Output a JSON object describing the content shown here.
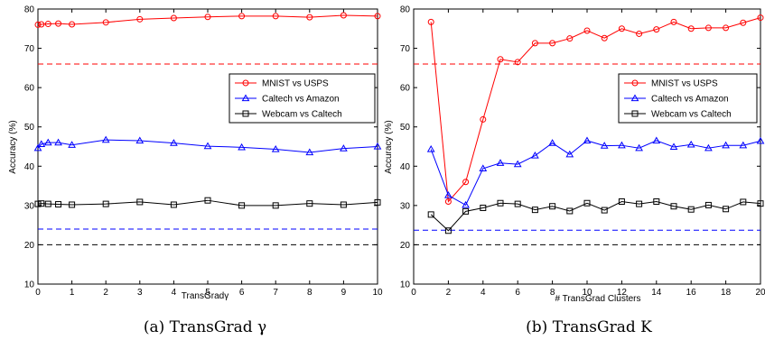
{
  "chart_data": [
    {
      "type": "line",
      "caption": "(a) TransGrad γ",
      "xlabel": "TransGradγ",
      "ylabel": "Accuracy (%)",
      "xlim": [
        0,
        10
      ],
      "ylim": [
        10,
        80
      ],
      "xticks": [
        0,
        1,
        2,
        3,
        4,
        5,
        6,
        7,
        8,
        9,
        10
      ],
      "yticks": [
        10,
        20,
        30,
        40,
        50,
        60,
        70,
        80
      ],
      "legend_position": "right",
      "grid": false,
      "x": [
        0,
        0.1,
        0.3,
        0.6,
        1,
        2,
        3,
        4,
        5,
        6,
        7,
        8,
        9,
        10
      ],
      "series": [
        {
          "name": "MNIST vs USPS",
          "color": "#ff0000",
          "marker": "circle",
          "values": [
            76.0,
            76.1,
            76.2,
            76.3,
            76.1,
            76.6,
            77.4,
            77.7,
            78.0,
            78.2,
            78.2,
            77.9,
            78.4,
            78.2
          ]
        },
        {
          "name": "Caltech vs Amazon",
          "color": "#0000ff",
          "marker": "triangle",
          "values": [
            44.6,
            45.6,
            46.0,
            46.0,
            45.4,
            46.7,
            46.5,
            45.9,
            45.1,
            44.8,
            44.3,
            43.5,
            44.5,
            45.0
          ]
        },
        {
          "name": "Webcam vs Caltech",
          "color": "#000000",
          "marker": "square",
          "values": [
            30.4,
            30.5,
            30.4,
            30.3,
            30.2,
            30.4,
            30.9,
            30.2,
            31.3,
            30.0,
            30.0,
            30.5,
            30.2,
            30.8
          ]
        }
      ],
      "baselines": [
        {
          "value": 66.0,
          "color": "#ff0000"
        },
        {
          "value": 24.0,
          "color": "#0000ff"
        },
        {
          "value": 20.0,
          "color": "#000000"
        }
      ]
    },
    {
      "type": "line",
      "caption": "(b) TransGrad K",
      "xlabel": "# TransGrad Clusters",
      "ylabel": "Accuracy (%)",
      "xlim": [
        0,
        20
      ],
      "ylim": [
        10,
        80
      ],
      "xticks": [
        0,
        2,
        4,
        6,
        8,
        10,
        12,
        14,
        16,
        18,
        20
      ],
      "yticks": [
        10,
        20,
        30,
        40,
        50,
        60,
        70,
        80
      ],
      "legend_position": "top-right",
      "grid": false,
      "x": [
        1,
        2,
        3,
        4,
        5,
        6,
        7,
        8,
        9,
        10,
        11,
        12,
        13,
        14,
        15,
        16,
        17,
        18,
        19,
        20
      ],
      "series": [
        {
          "name": "MNIST vs USPS",
          "color": "#ff0000",
          "marker": "circle",
          "values": [
            76.7,
            31.0,
            36.0,
            51.9,
            67.2,
            66.5,
            71.3,
            71.3,
            72.5,
            74.5,
            72.6,
            75.0,
            73.7,
            74.8,
            76.7,
            75.0,
            75.2,
            75.2,
            76.5,
            77.8
          ]
        },
        {
          "name": "Caltech vs Amazon",
          "color": "#0000ff",
          "marker": "triangle",
          "values": [
            44.3,
            32.6,
            30.1,
            39.4,
            40.8,
            40.5,
            42.7,
            45.9,
            43.0,
            46.5,
            45.2,
            45.3,
            44.6,
            46.5,
            44.9,
            45.5,
            44.6,
            45.3,
            45.3,
            46.4
          ]
        },
        {
          "name": "Webcam vs Caltech",
          "color": "#000000",
          "marker": "square",
          "values": [
            27.7,
            23.6,
            28.5,
            29.4,
            30.6,
            30.4,
            28.9,
            29.8,
            28.6,
            30.6,
            28.8,
            31.0,
            30.4,
            31.0,
            29.8,
            29.0,
            30.1,
            29.1,
            30.9,
            30.5
          ]
        }
      ],
      "baselines": [
        {
          "value": 66.0,
          "color": "#ff0000"
        },
        {
          "value": 23.7,
          "color": "#0000ff"
        },
        {
          "value": 20.0,
          "color": "#000000"
        }
      ]
    }
  ]
}
